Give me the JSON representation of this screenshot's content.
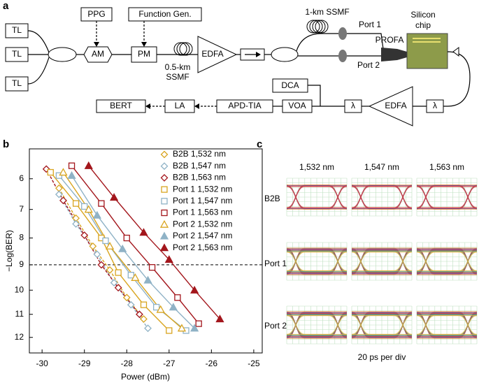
{
  "panel_a": {
    "label": "a",
    "nodes": [
      "TL",
      "TL",
      "TL",
      "PPG",
      "Function Gen.",
      "AM",
      "PM",
      "0.5-km",
      "SSMF",
      "EDFA",
      "1-km SSMF",
      "Port 1",
      "Port 2",
      "PROFA",
      "Silicon",
      "chip",
      "DCA",
      "VOA",
      "APD-TIA",
      "LA",
      "BERT",
      "EDFA",
      "λ",
      "λ"
    ]
  },
  "chart_data": {
    "type": "line",
    "panel_label": "b",
    "x_label": "Power (dBm)",
    "y_label": "−Log(BER)",
    "xlim": [
      -30.3,
      -24.8
    ],
    "xticks": [
      -30,
      -29,
      -28,
      -27,
      -26,
      -25
    ],
    "ylim": [
      5.1,
      12.7
    ],
    "yticks": [
      6,
      7,
      8,
      9,
      10,
      11,
      12
    ],
    "yscale": "sqrt",
    "y_reversed": true,
    "reference_line": 9,
    "legend": "upper right",
    "series": [
      {
        "name": "B2B 1,532 nm",
        "color": "#d9a520",
        "marker": "diamond",
        "filled": false,
        "linestyle": "dashed",
        "x": [
          -29.6,
          -29.2,
          -28.8,
          -28.4,
          -28.0,
          -27.6
        ],
        "values": [
          6.3,
          7.3,
          8.3,
          9.2,
          10.3,
          11.2
        ]
      },
      {
        "name": "B2B 1,547 nm",
        "color": "#8fb2c6",
        "marker": "diamond",
        "filled": false,
        "linestyle": "dashed",
        "x": [
          -29.6,
          -29.2,
          -28.7,
          -28.3,
          -27.9,
          -27.5
        ],
        "values": [
          6.5,
          7.5,
          8.6,
          9.7,
          10.6,
          11.6
        ]
      },
      {
        "name": "B2B 1,563 nm",
        "color": "#a3161c",
        "marker": "diamond",
        "filled": false,
        "linestyle": "dashed",
        "x": [
          -29.9,
          -29.5,
          -29.0,
          -28.6,
          -28.2,
          -27.7
        ],
        "values": [
          5.7,
          6.7,
          7.9,
          9.0,
          9.9,
          11.0
        ]
      },
      {
        "name": "Port 1 1,532 nm",
        "color": "#d9a520",
        "marker": "square",
        "filled": false,
        "linestyle": "solid",
        "x": [
          -29.8,
          -29.2,
          -28.6,
          -28.2,
          -27.6,
          -27.0
        ],
        "values": [
          5.8,
          6.8,
          8.0,
          9.3,
          10.6,
          11.7
        ]
      },
      {
        "name": "Port 1 1,547 nm",
        "color": "#8fb2c6",
        "marker": "square",
        "filled": false,
        "linestyle": "solid",
        "x": [
          -29.6,
          -29.0,
          -28.5,
          -27.9,
          -27.3,
          -26.6
        ],
        "values": [
          5.9,
          6.9,
          8.1,
          9.4,
          10.7,
          11.7
        ]
      },
      {
        "name": "Port 1 1,563 nm",
        "color": "#a3161c",
        "marker": "square",
        "filled": false,
        "linestyle": "solid",
        "x": [
          -29.3,
          -28.6,
          -28.0,
          -27.4,
          -26.8,
          -26.3
        ],
        "values": [
          5.6,
          6.8,
          8.0,
          9.1,
          10.3,
          11.4
        ]
      },
      {
        "name": "Port 2 1,532 nm",
        "color": "#d9a520",
        "marker": "triangle",
        "filled": false,
        "linestyle": "solid",
        "x": [
          -29.5,
          -28.9,
          -28.4,
          -27.8,
          -27.2,
          -26.7
        ],
        "values": [
          5.8,
          7.0,
          8.3,
          9.5,
          10.8,
          11.6
        ]
      },
      {
        "name": "Port 2 1,547 nm",
        "color": "#8fb2c6",
        "marker": "triangle",
        "filled": true,
        "linestyle": "solid",
        "x": [
          -29.3,
          -28.7,
          -28.1,
          -27.5,
          -26.9,
          -26.4
        ],
        "values": [
          5.9,
          7.2,
          8.4,
          9.6,
          10.7,
          11.6
        ]
      },
      {
        "name": "Port 2 1,563 nm",
        "color": "#a3161c",
        "marker": "triangle",
        "filled": true,
        "linestyle": "solid",
        "x": [
          -28.9,
          -28.3,
          -27.6,
          -27.0,
          -26.4,
          -25.8
        ],
        "values": [
          5.6,
          6.6,
          7.8,
          8.8,
          10.0,
          11.2
        ]
      }
    ]
  },
  "panel_c": {
    "label": "c",
    "columns": [
      "1,532 nm",
      "1,547 nm",
      "1,563 nm"
    ],
    "rows": [
      "B2B",
      "Port 1",
      "Port 2"
    ],
    "caption": "20 ps per div"
  }
}
